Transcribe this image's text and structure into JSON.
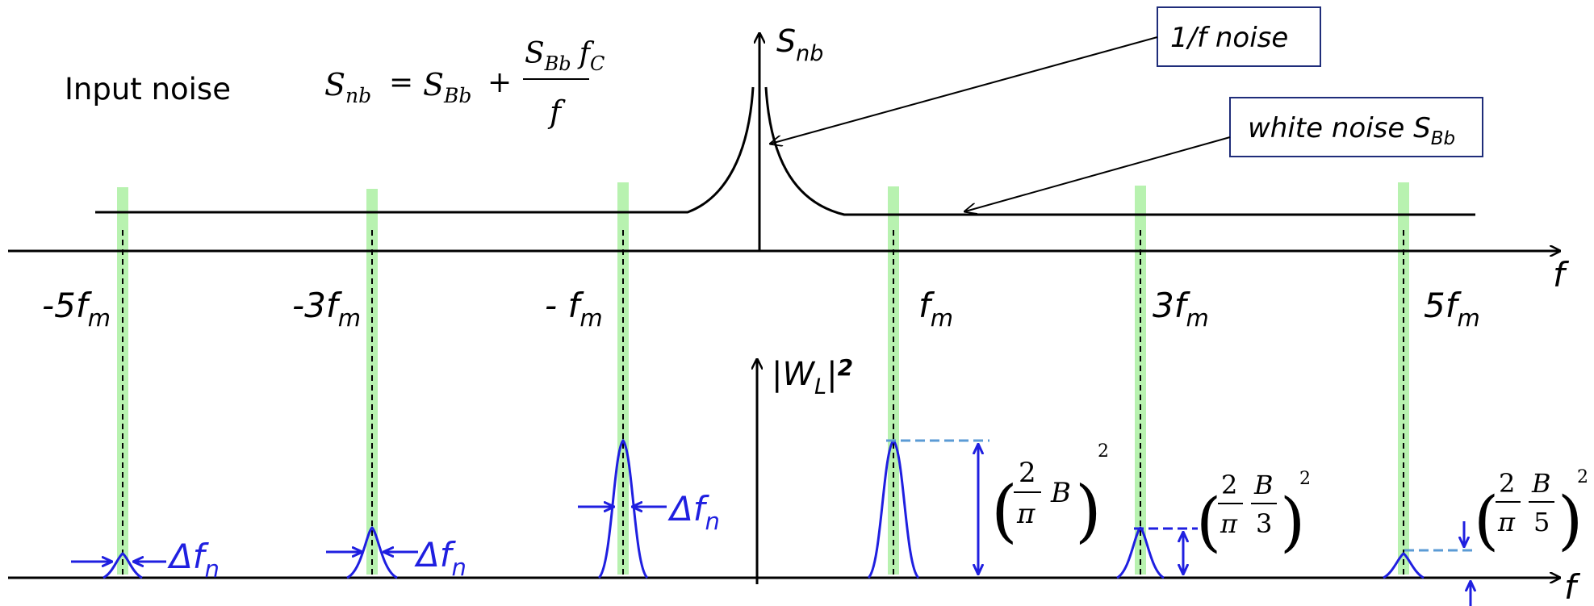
{
  "colors": {
    "axis": "#000000",
    "highlight": "#b8f2b0",
    "filter": "#1f1fe0",
    "dashed_level": "#5b9bd5",
    "box_border": "#1f2d7a"
  },
  "top_plot": {
    "title": "Input noise",
    "axis_y_label": "S",
    "axis_y_sub": "nb",
    "axis_x_label": "f",
    "formula": {
      "lhs": "S",
      "lhs_sub": "nb",
      "eq": "=",
      "term1": "S",
      "term1_sub": "Bb",
      "plus": "+",
      "num_s": "S",
      "num_s_sub": "Bb",
      "num_f": "f",
      "num_f_sub": "C",
      "den": "f"
    },
    "callout_1f": "1/f noise",
    "callout_white_text": "white noise S",
    "callout_white_sub": "Bb"
  },
  "harmonics": [
    {
      "prefix": "-5",
      "base": "f",
      "sub": "m"
    },
    {
      "prefix": "-3",
      "base": "f",
      "sub": "m"
    },
    {
      "prefix": "- ",
      "base": "f",
      "sub": "m"
    },
    {
      "prefix": "",
      "base": "f",
      "sub": "m"
    },
    {
      "prefix": "3",
      "base": "f",
      "sub": "m"
    },
    {
      "prefix": "5",
      "base": "f",
      "sub": "m"
    }
  ],
  "bottom_plot": {
    "axis_y_pre": "|W",
    "axis_y_sub": "L",
    "axis_y_post": "|",
    "axis_y_exp": "2",
    "axis_x_label": "f",
    "delta_base": "Δf",
    "delta_sub": "n",
    "amp_1": {
      "num": "2",
      "den": "π",
      "B": "B",
      "exp": "2"
    },
    "amp_3": {
      "num": "2",
      "den": "π",
      "Bnum": "B",
      "Bden": "3",
      "exp": "2"
    },
    "amp_5": {
      "num": "2",
      "den": "π",
      "Bnum": "B",
      "Bden": "5",
      "exp": "2"
    }
  }
}
